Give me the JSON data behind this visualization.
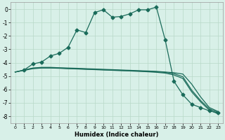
{
  "xlabel": "Humidex (Indice chaleur)",
  "bg_color": "#d8f0e8",
  "grid_color": "#b8d8c8",
  "line_color": "#1a6b5a",
  "xlim": [
    -0.5,
    23.5
  ],
  "ylim": [
    -8.5,
    0.5
  ],
  "yticks": [
    0,
    -1,
    -2,
    -3,
    -4,
    -5,
    -6,
    -7,
    -8
  ],
  "xticks": [
    0,
    1,
    2,
    3,
    4,
    5,
    6,
    7,
    8,
    9,
    10,
    11,
    12,
    13,
    14,
    15,
    16,
    17,
    18,
    19,
    20,
    21,
    22,
    23
  ],
  "curve1_x": [
    1,
    2,
    3,
    4,
    5,
    6,
    7,
    8,
    9,
    10,
    11,
    12,
    13,
    14,
    15,
    16,
    17,
    18,
    19,
    20,
    21,
    22,
    23
  ],
  "curve1_y": [
    -4.55,
    -4.1,
    -3.95,
    -3.5,
    -3.3,
    -2.85,
    -1.55,
    -1.75,
    -0.25,
    -0.05,
    -0.6,
    -0.55,
    -0.35,
    -0.05,
    -0.05,
    0.15,
    -2.3,
    -5.4,
    -6.4,
    -7.1,
    -7.35,
    -7.6,
    -7.75
  ],
  "curve2_x": [
    0,
    1,
    2,
    3,
    4,
    5,
    6,
    7,
    8,
    9,
    10,
    11,
    12,
    13,
    14,
    15,
    16,
    17,
    18,
    19,
    20,
    21,
    22,
    23
  ],
  "curve2_y": [
    -4.7,
    -4.55,
    -4.4,
    -4.35,
    -4.35,
    -4.38,
    -4.4,
    -4.42,
    -4.45,
    -4.47,
    -4.5,
    -4.52,
    -4.55,
    -4.57,
    -4.6,
    -4.62,
    -4.65,
    -4.7,
    -4.75,
    -4.85,
    -5.6,
    -6.55,
    -7.35,
    -7.65
  ],
  "curve3_x": [
    0,
    1,
    2,
    3,
    4,
    5,
    6,
    7,
    8,
    9,
    10,
    11,
    12,
    13,
    14,
    15,
    16,
    17,
    18,
    19,
    20,
    21,
    22,
    23
  ],
  "curve3_y": [
    -4.7,
    -4.55,
    -4.42,
    -4.38,
    -4.38,
    -4.4,
    -4.43,
    -4.45,
    -4.47,
    -4.5,
    -4.52,
    -4.54,
    -4.57,
    -4.59,
    -4.62,
    -4.65,
    -4.68,
    -4.72,
    -4.82,
    -5.05,
    -6.05,
    -6.82,
    -7.45,
    -7.72
  ],
  "curve4_x": [
    0,
    1,
    2,
    3,
    4,
    5,
    6,
    7,
    8,
    9,
    10,
    11,
    12,
    13,
    14,
    15,
    16,
    17,
    18,
    19,
    20,
    21,
    22,
    23
  ],
  "curve4_y": [
    -4.7,
    -4.58,
    -4.45,
    -4.4,
    -4.4,
    -4.42,
    -4.45,
    -4.47,
    -4.5,
    -4.52,
    -4.55,
    -4.57,
    -4.6,
    -4.62,
    -4.65,
    -4.68,
    -4.72,
    -4.78,
    -4.92,
    -5.18,
    -6.18,
    -6.92,
    -7.55,
    -7.82
  ]
}
